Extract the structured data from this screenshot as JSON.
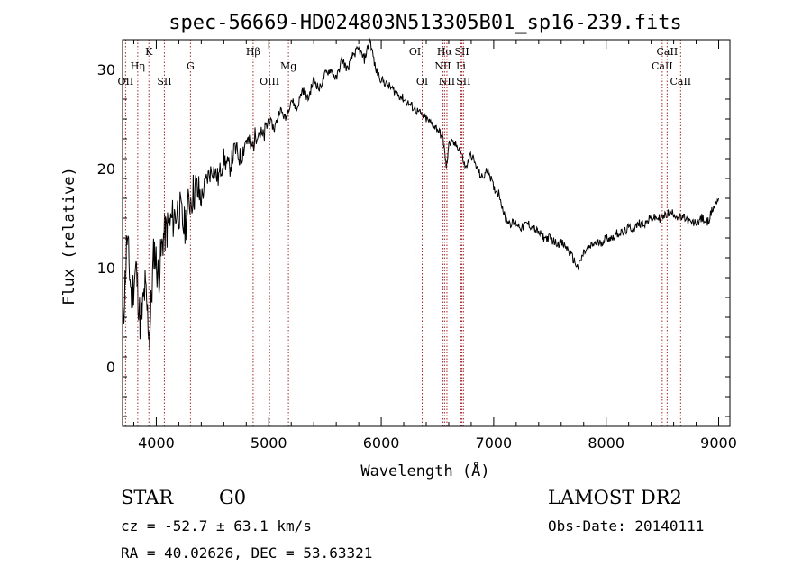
{
  "chart_data": {
    "type": "line",
    "title": "spec-56669-HD024803N513305B01_sp16-239.fits",
    "xlabel": "Wavelength (Å)",
    "ylabel": "Flux (relative)",
    "xlim": [
      3700,
      9100
    ],
    "ylim": [
      -6,
      33
    ],
    "xticks": [
      4000,
      5000,
      6000,
      7000,
      8000,
      9000
    ],
    "yticks": [
      0,
      10,
      20,
      30
    ],
    "grid": false,
    "series": [
      {
        "x": [
          3700,
          3740,
          3780,
          3820,
          3860,
          3900,
          3940,
          3980,
          4020,
          4060,
          4100,
          4150,
          4200,
          4250,
          4300,
          4350,
          4400,
          4450,
          4500,
          4550,
          4600,
          4650,
          4700,
          4750,
          4800,
          4850,
          4900,
          4950,
          5000,
          5050,
          5100,
          5150,
          5200,
          5250,
          5300,
          5350,
          5400,
          5450,
          5500,
          5550,
          5600,
          5650,
          5700,
          5750,
          5800,
          5850,
          5900,
          5950,
          6000,
          6050,
          6100,
          6150,
          6200,
          6250,
          6300,
          6350,
          6400,
          6450,
          6500,
          6550,
          6580,
          6600,
          6650,
          6700,
          6750,
          6800,
          6850,
          6900,
          6950,
          7000,
          7050,
          7100,
          7150,
          7200,
          7250,
          7300,
          7350,
          7400,
          7450,
          7500,
          7550,
          7600,
          7650,
          7700,
          7750,
          7800,
          7850,
          7900,
          7950,
          8000,
          8050,
          8100,
          8150,
          8200,
          8250,
          8300,
          8350,
          8400,
          8450,
          8500,
          8550,
          8600,
          8650,
          8700,
          8750,
          8800,
          8850,
          8900,
          8950,
          9000
        ],
        "y": [
          3,
          13,
          7,
          10,
          4,
          8,
          3,
          12,
          9,
          13,
          14,
          15,
          16,
          14,
          17,
          18,
          17,
          19,
          20,
          19,
          21,
          20,
          22,
          21,
          23,
          22,
          24,
          23,
          25,
          24,
          26,
          25,
          27,
          26,
          28,
          27,
          29,
          28,
          29.5,
          30,
          29,
          31,
          30,
          31.5,
          32,
          31,
          33,
          30,
          29,
          28.5,
          28,
          27.5,
          27,
          26.5,
          26,
          25.5,
          25,
          24.5,
          24,
          23,
          20,
          22.5,
          22.5,
          22,
          20,
          21.5,
          20,
          19,
          20,
          18,
          17.5,
          15,
          14.5,
          14.5,
          14,
          14.5,
          14,
          13.5,
          13,
          13,
          12.5,
          12.5,
          12,
          11,
          10,
          11.5,
          12,
          12.5,
          12.5,
          13,
          13,
          13.5,
          13.5,
          14,
          14,
          14.5,
          14.5,
          15,
          15,
          15,
          15.5,
          15.5,
          15,
          15,
          14.5,
          14.5,
          15,
          14.5,
          16,
          17
        ]
      }
    ],
    "lines": [
      {
        "label": "OII",
        "x": 3727,
        "row": 3
      },
      {
        "label": "Hη",
        "x": 3835,
        "row": 2
      },
      {
        "label": "K",
        "x": 3934,
        "row": 1
      },
      {
        "label": "SII",
        "x": 4072,
        "row": 3
      },
      {
        "label": "G",
        "x": 4304,
        "row": 2
      },
      {
        "label": "Hβ",
        "x": 4861,
        "row": 1
      },
      {
        "label": "OIII",
        "x": 5007,
        "row": 3
      },
      {
        "label": "Mg",
        "x": 5175,
        "row": 2
      },
      {
        "label": "OI",
        "x": 6300,
        "row": 1
      },
      {
        "label": "OI",
        "x": 6364,
        "row": 3
      },
      {
        "label": "Hα",
        "x": 6563,
        "row": 1
      },
      {
        "label": "NII",
        "x": 6548,
        "row": 2
      },
      {
        "label": "NII",
        "x": 6584,
        "row": 3
      },
      {
        "label": "SII",
        "x": 6717,
        "row": 1
      },
      {
        "label": "Li",
        "x": 6708,
        "row": 2
      },
      {
        "label": "SII",
        "x": 6731,
        "row": 3
      },
      {
        "label": "CaII",
        "x": 8498,
        "row": 2
      },
      {
        "label": "CaII",
        "x": 8542,
        "row": 1
      },
      {
        "label": "CaII",
        "x": 8662,
        "row": 3
      }
    ]
  },
  "info": {
    "class": "STAR",
    "subclass": "G0",
    "survey": "LAMOST DR2",
    "cz": "cz = -52.7 ± 63.1 km/s",
    "obs_date": "Obs-Date: 20140111",
    "coords": "RA =  40.02626, DEC =  53.63321"
  }
}
